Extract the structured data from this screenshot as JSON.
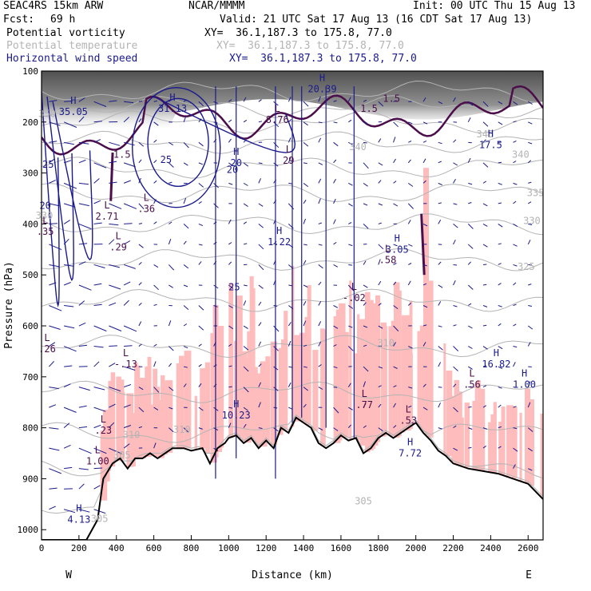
{
  "header": {
    "model": "SEAC4RS 15km ARW",
    "org": "NCAR/MMMM",
    "init": "Init: 00 UTC Thu 15 Aug 13",
    "fcst_label": "Fcst:",
    "fcst_value": "69 h",
    "valid": "Valid: 21 UTC Sat 17 Aug 13 (16 CDT Sat 17 Aug 13)",
    "field1": "Potential vorticity",
    "field2": "Potential temperature",
    "field3": "Horizontal wind speed",
    "xy1": "XY=  36.1,187.3 to 175.8, 77.0",
    "xy2": "XY=  36.1,187.3 to 175.8, 77.0",
    "xy3": "XY=  36.1,187.3 to 175.8, 77.0"
  },
  "colors": {
    "pv": "#4b0e4b",
    "theta": "#b4b4b4",
    "wind": "#1a1a8c",
    "cloud_shading": "#ffbcbc",
    "terrain": "#000000"
  },
  "chart_data": {
    "type": "cross-section",
    "xlabel": "Distance (km)",
    "ylabel": "Pressure (hPa)",
    "xlim": [
      0,
      2680
    ],
    "ylim": [
      1020,
      100
    ],
    "x_ticks": [
      0,
      200,
      400,
      600,
      800,
      1000,
      1200,
      1400,
      1600,
      1800,
      2000,
      2200,
      2400,
      2600
    ],
    "y_ticks": [
      100,
      200,
      300,
      400,
      500,
      600,
      700,
      800,
      900,
      1000
    ],
    "left_end": "W",
    "right_end": "E",
    "terrain_profile": [
      [
        0,
        1020
      ],
      [
        240,
        1020
      ],
      [
        300,
        980
      ],
      [
        330,
        900
      ],
      [
        380,
        870
      ],
      [
        420,
        860
      ],
      [
        460,
        880
      ],
      [
        500,
        860
      ],
      [
        540,
        860
      ],
      [
        580,
        850
      ],
      [
        620,
        860
      ],
      [
        660,
        850
      ],
      [
        700,
        840
      ],
      [
        760,
        840
      ],
      [
        800,
        845
      ],
      [
        860,
        840
      ],
      [
        900,
        870
      ],
      [
        940,
        840
      ],
      [
        980,
        830
      ],
      [
        1000,
        820
      ],
      [
        1040,
        815
      ],
      [
        1080,
        830
      ],
      [
        1120,
        820
      ],
      [
        1160,
        840
      ],
      [
        1200,
        825
      ],
      [
        1240,
        840
      ],
      [
        1280,
        800
      ],
      [
        1320,
        810
      ],
      [
        1360,
        780
      ],
      [
        1400,
        790
      ],
      [
        1440,
        800
      ],
      [
        1480,
        830
      ],
      [
        1520,
        840
      ],
      [
        1560,
        830
      ],
      [
        1600,
        815
      ],
      [
        1640,
        825
      ],
      [
        1680,
        820
      ],
      [
        1720,
        850
      ],
      [
        1760,
        840
      ],
      [
        1800,
        820
      ],
      [
        1840,
        810
      ],
      [
        1880,
        820
      ],
      [
        1920,
        810
      ],
      [
        1960,
        800
      ],
      [
        2000,
        790
      ],
      [
        2040,
        810
      ],
      [
        2080,
        825
      ],
      [
        2120,
        845
      ],
      [
        2160,
        855
      ],
      [
        2200,
        870
      ],
      [
        2280,
        880
      ],
      [
        2360,
        885
      ],
      [
        2440,
        890
      ],
      [
        2520,
        900
      ],
      [
        2600,
        910
      ],
      [
        2680,
        940
      ]
    ],
    "theta_labels": [
      {
        "x": 30,
        "p": 190,
        "text": "350"
      },
      {
        "x": 2370,
        "p": 230,
        "text": "345"
      },
      {
        "x": 1690,
        "p": 255,
        "text": "340"
      },
      {
        "x": 2560,
        "p": 270,
        "text": "340"
      },
      {
        "x": 2640,
        "p": 345,
        "text": "335"
      },
      {
        "x": 2620,
        "p": 400,
        "text": "330"
      },
      {
        "x": 15,
        "p": 390,
        "text": "330"
      },
      {
        "x": 2590,
        "p": 490,
        "text": "325"
      },
      {
        "x": 1840,
        "p": 640,
        "text": "310"
      },
      {
        "x": 480,
        "p": 820,
        "text": "310"
      },
      {
        "x": 750,
        "p": 810,
        "text": "310"
      },
      {
        "x": 430,
        "p": 860,
        "text": "305"
      },
      {
        "x": 310,
        "p": 985,
        "text": "305"
      },
      {
        "x": 1720,
        "p": 950,
        "text": "305"
      }
    ],
    "pv_labels": [
      {
        "x": 1870,
        "p": 160,
        "text": "1.5"
      },
      {
        "x": 1750,
        "p": 180,
        "text": "1.5"
      },
      {
        "x": 430,
        "p": 270,
        "text": "1.5"
      }
    ],
    "hl_markers": [
      {
        "x": 170,
        "p": 185,
        "hl": "H",
        "value": "35.05"
      },
      {
        "x": 700,
        "p": 178,
        "hl": "H",
        "value": "31.13"
      },
      {
        "x": 1500,
        "p": 140,
        "hl": "H",
        "value": "20.39"
      },
      {
        "x": 2400,
        "p": 250,
        "hl": "H",
        "value": "17.5"
      },
      {
        "x": 1260,
        "p": 200,
        "hl": "L",
        "value": "8.76"
      },
      {
        "x": 1320,
        "p": 280,
        "hl": "L",
        "value": "29"
      },
      {
        "x": 1040,
        "p": 285,
        "hl": "H",
        "value": "20"
      },
      {
        "x": 350,
        "p": 390,
        "hl": "L",
        "value": "2.71"
      },
      {
        "x": 560,
        "p": 375,
        "hl": "L",
        "value": ".36"
      },
      {
        "x": 20,
        "p": 420,
        "hl": "L",
        "value": ".35"
      },
      {
        "x": 410,
        "p": 450,
        "hl": "L",
        "value": ".29"
      },
      {
        "x": 1270,
        "p": 440,
        "hl": "H",
        "value": "1.22"
      },
      {
        "x": 1900,
        "p": 455,
        "hl": "H",
        "value": "3.05"
      },
      {
        "x": 1850,
        "p": 475,
        "hl": "L",
        "value": ".58"
      },
      {
        "x": 1670,
        "p": 550,
        "hl": "L",
        "value": "-.02"
      },
      {
        "x": 30,
        "p": 650,
        "hl": "L",
        "value": ".26"
      },
      {
        "x": 450,
        "p": 680,
        "hl": "L",
        "value": "-.13"
      },
      {
        "x": 2430,
        "p": 680,
        "hl": "H",
        "value": "16.82"
      },
      {
        "x": 2580,
        "p": 720,
        "hl": "H",
        "value": "1.00"
      },
      {
        "x": 2300,
        "p": 720,
        "hl": "L",
        "value": ".56"
      },
      {
        "x": 1725,
        "p": 760,
        "hl": "L",
        "value": ".77"
      },
      {
        "x": 1960,
        "p": 790,
        "hl": "L",
        "value": ".53"
      },
      {
        "x": 1040,
        "p": 780,
        "hl": "H",
        "value": "10.23"
      },
      {
        "x": 330,
        "p": 810,
        "hl": "L",
        "value": ".23"
      },
      {
        "x": 1970,
        "p": 855,
        "hl": "H",
        "value": "7.72"
      },
      {
        "x": 300,
        "p": 870,
        "hl": "L",
        "value": "1.00"
      },
      {
        "x": 200,
        "p": 985,
        "hl": "H",
        "value": "4.13"
      }
    ],
    "wind_labels": [
      {
        "x": 35,
        "p": 290,
        "text": "25"
      },
      {
        "x": 665,
        "p": 280,
        "text": "25"
      },
      {
        "x": 20,
        "p": 370,
        "text": "20"
      },
      {
        "x": 1020,
        "p": 300,
        "text": "20"
      },
      {
        "x": 1030,
        "p": 530,
        "text": "25"
      }
    ]
  }
}
